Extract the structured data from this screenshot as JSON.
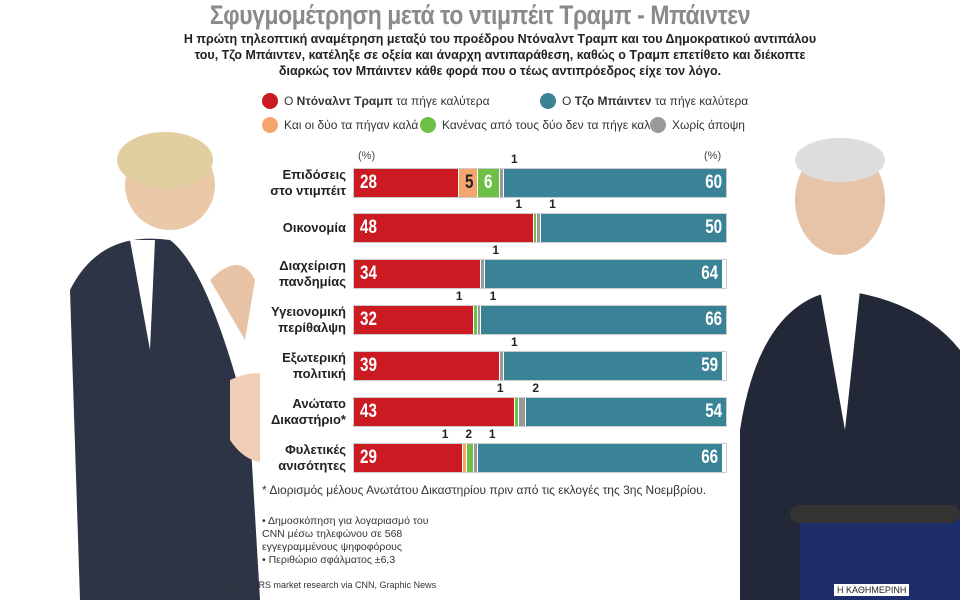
{
  "title": "Σφυγμομέτρηση μετά το ντιμπέιτ Τραμπ - Μπάιντεν",
  "subtitle": "Η πρώτη τηλεοπτική αναμέτρηση μεταξύ του προέδρου Ντόναλντ Τραμπ και του Δημοκρατικού αντιπάλου του, Τζο Μπάιντεν, κατέληξε σε οξεία και άναρχη αντιπαράθεση, καθώς ο Τραμπ επετίθετο και διέκοπτε διαρκώς τον Μπάιντεν κάθε φορά που ο τέως αντιπρόεδρος είχε τον λόγο.",
  "legend": {
    "trump": {
      "pre": "Ο ",
      "bold": "Ντόναλντ Τραμπ",
      "post": " τα πήγε καλύτερα"
    },
    "biden": {
      "pre": "Ο ",
      "bold": "Τζο Μπάιντεν",
      "post": " τα πήγε καλύτερα"
    },
    "both": "Και οι δύο τα πήγαν καλά",
    "neither": "Κανένας από τους δύο δεν τα πήγε καλά",
    "noop": "Χωρίς άποψη"
  },
  "colors": {
    "trump": "#cc1a22",
    "both": "#f5a66e",
    "neither": "#6dbf45",
    "noop": "#999999",
    "biden": "#3a8396"
  },
  "chart_data": {
    "type": "bar",
    "stacked": true,
    "orientation": "horizontal",
    "unit_left": "(%)",
    "unit_right": "(%)",
    "categories": [
      [
        "Επιδόσεις",
        "στο ντιμπέιτ"
      ],
      [
        "Οικονομία"
      ],
      [
        "Διαχείριση",
        "πανδημίας"
      ],
      [
        "Υγειονομική",
        "περίθαλψη"
      ],
      [
        "Εξωτερική",
        "πολιτική"
      ],
      [
        "Ανώτατο",
        "Δικαστήριο*"
      ],
      [
        "Φυλετικές",
        "ανισότητες"
      ]
    ],
    "series": [
      {
        "name": "Ο Ντόναλντ Τραμπ τα πήγε καλύτερα",
        "key": "trump",
        "values": [
          28,
          48,
          34,
          32,
          39,
          43,
          29
        ]
      },
      {
        "name": "Και οι δύο τα πήγαν καλά",
        "key": "both",
        "values": [
          5,
          0,
          0,
          0,
          0,
          0,
          1
        ]
      },
      {
        "name": "Κανένας από τους δύο δεν τα πήγε καλά",
        "key": "neither",
        "values": [
          6,
          1,
          0,
          1,
          0,
          1,
          2
        ]
      },
      {
        "name": "Χωρίς άποψη",
        "key": "noop",
        "values": [
          1,
          1,
          1,
          1,
          1,
          2,
          1
        ]
      },
      {
        "name": "Ο Τζο Μπάιντεν τα πήγε καλύτερα",
        "key": "biden",
        "values": [
          60,
          50,
          64,
          66,
          59,
          54,
          66
        ]
      }
    ],
    "xlim": [
      0,
      100
    ]
  },
  "footnote": "* Διορισμός μέλους Ανωτάτου Δικαστηρίου πριν από τις εκλογές της 3ης Νοεμβρίου.",
  "notes": [
    "• Δημοσκόπηση για λογαριασμό του CNN μέσω τηλεφώνου σε 568 εγγεγραμμένους ψηφοφόρους",
    "• Περιθώριο σφάλματος ±6,3"
  ],
  "source": "ΠΗΓΕΣ: SSRS market research via CNN, Graphic News",
  "brand": "Η ΚΑΘΗΜΕΡΙΝΗ"
}
